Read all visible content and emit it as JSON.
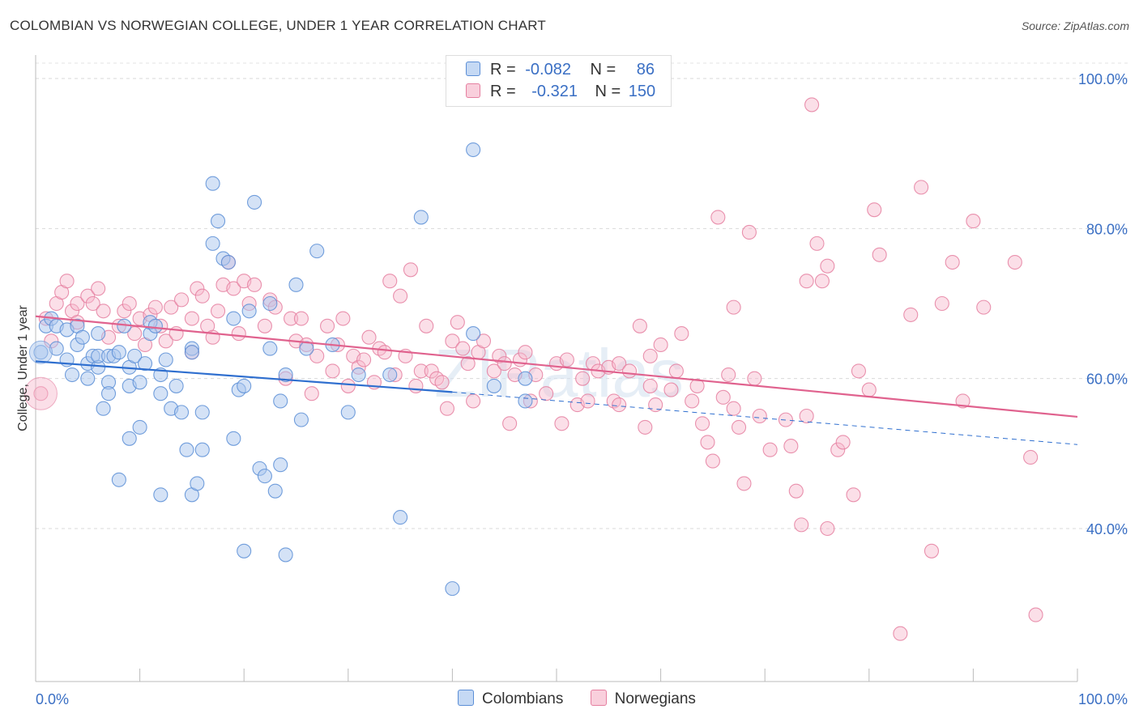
{
  "title": "COLOMBIAN VS NORWEGIAN COLLEGE, UNDER 1 YEAR CORRELATION CHART",
  "source": "Source: ZipAtlas.com",
  "watermark": "ZIPatlas",
  "colors": {
    "blue_fill": "#a9c6ee",
    "blue_stroke": "#5b8ed6",
    "blue_line": "#2f6fcf",
    "pink_fill": "#f6b8cb",
    "pink_stroke": "#e57fa0",
    "pink_line": "#e0628e",
    "tick_text": "#3a6fc4"
  },
  "legend": {
    "rows": [
      {
        "r_label": "R =",
        "r_value": "-0.082",
        "n_label": "N =",
        "n_value": "86"
      },
      {
        "r_label": "R =",
        "r_value": "-0.321",
        "n_label": "N =",
        "n_value": "150"
      }
    ]
  },
  "bottom_legend": [
    "Colombians",
    "Norwegians"
  ],
  "chart_data": {
    "type": "scatter",
    "title": "COLOMBIAN VS NORWEGIAN COLLEGE, UNDER 1 YEAR CORRELATION CHART",
    "ylabel": "College, Under 1 year",
    "xlabel": "",
    "x_tick_labels": [
      "0.0%",
      "100.0%"
    ],
    "y_tick_labels": [
      "100.0%",
      "80.0%",
      "60.0%",
      "40.0%"
    ],
    "y_ticks": [
      100,
      80,
      60,
      40
    ],
    "xlim": [
      0,
      100
    ],
    "ylim": [
      20,
      102
    ],
    "series": [
      {
        "name": "Colombians",
        "r": -0.082,
        "n": 86,
        "trend": {
          "x0": 0,
          "y0": 62.3,
          "x1": 40,
          "y1": 58.2,
          "dash_x1": 100,
          "dash_y1": 51.2
        },
        "points": [
          [
            0.5,
            63.5
          ],
          [
            1,
            67
          ],
          [
            1.5,
            68
          ],
          [
            2,
            64
          ],
          [
            2,
            67
          ],
          [
            3,
            62.5
          ],
          [
            3,
            66.5
          ],
          [
            3.5,
            60.5
          ],
          [
            4,
            64.5
          ],
          [
            4,
            67
          ],
          [
            4.5,
            65.5
          ],
          [
            5,
            62
          ],
          [
            5,
            60
          ],
          [
            5.5,
            63
          ],
          [
            6,
            61.5
          ],
          [
            6,
            63
          ],
          [
            6,
            66
          ],
          [
            6.5,
            56
          ],
          [
            7,
            59.5
          ],
          [
            7,
            58
          ],
          [
            7,
            63
          ],
          [
            7.5,
            63
          ],
          [
            8,
            46.5
          ],
          [
            8,
            63.5
          ],
          [
            8.5,
            67
          ],
          [
            9,
            61.5
          ],
          [
            9,
            59
          ],
          [
            9.5,
            63
          ],
          [
            10,
            53.5
          ],
          [
            10,
            59.5
          ],
          [
            10.5,
            62
          ],
          [
            11,
            66
          ],
          [
            11,
            67.5
          ],
          [
            11.5,
            67
          ],
          [
            12,
            60.5
          ],
          [
            12,
            58
          ],
          [
            12.5,
            62.5
          ],
          [
            13,
            56
          ],
          [
            13.5,
            59
          ],
          [
            14,
            55.5
          ],
          [
            14.5,
            50.5
          ],
          [
            15,
            64
          ],
          [
            15,
            63.5
          ],
          [
            15,
            44.5
          ],
          [
            15.5,
            46
          ],
          [
            16,
            55.5
          ],
          [
            16,
            50.5
          ],
          [
            17,
            86
          ],
          [
            17,
            78
          ],
          [
            17.5,
            81
          ],
          [
            18,
            76
          ],
          [
            18.5,
            75.5
          ],
          [
            19,
            52
          ],
          [
            19,
            68
          ],
          [
            19.5,
            58.5
          ],
          [
            20,
            59
          ],
          [
            20,
            37
          ],
          [
            20.5,
            69
          ],
          [
            21,
            83.5
          ],
          [
            21.5,
            48
          ],
          [
            22,
            47
          ],
          [
            22.5,
            64
          ],
          [
            22.5,
            70
          ],
          [
            23,
            45
          ],
          [
            23.5,
            48.5
          ],
          [
            23.5,
            57
          ],
          [
            24,
            36.5
          ],
          [
            24,
            60.5
          ],
          [
            25,
            72.5
          ],
          [
            25.5,
            54.5
          ],
          [
            26,
            64
          ],
          [
            27,
            77
          ],
          [
            28.5,
            64.5
          ],
          [
            30,
            55.5
          ],
          [
            31,
            60.5
          ],
          [
            34,
            60.5
          ],
          [
            35,
            41.5
          ],
          [
            37,
            81.5
          ],
          [
            40,
            32
          ],
          [
            42,
            90.5
          ],
          [
            42,
            66
          ],
          [
            44,
            59
          ],
          [
            47,
            57
          ],
          [
            47,
            60
          ],
          [
            9,
            52
          ],
          [
            12,
            44.5
          ]
        ]
      },
      {
        "name": "Norwegians",
        "r": -0.321,
        "n": 150,
        "trend": {
          "x0": 0,
          "y0": 68.3,
          "x1": 100,
          "y1": 54.9
        },
        "points": [
          [
            0.5,
            58
          ],
          [
            1,
            68
          ],
          [
            1.5,
            65
          ],
          [
            2,
            70
          ],
          [
            2.5,
            71.5
          ],
          [
            3,
            73
          ],
          [
            3.5,
            69
          ],
          [
            4,
            70
          ],
          [
            4,
            67.5
          ],
          [
            5,
            71
          ],
          [
            5.5,
            70
          ],
          [
            6,
            72
          ],
          [
            6.5,
            69
          ],
          [
            7,
            65.5
          ],
          [
            8,
            67
          ],
          [
            8.5,
            69
          ],
          [
            9,
            70
          ],
          [
            9.5,
            66
          ],
          [
            10,
            68
          ],
          [
            10.5,
            64.5
          ],
          [
            11,
            68.5
          ],
          [
            11.5,
            69.5
          ],
          [
            12,
            67
          ],
          [
            12.5,
            65
          ],
          [
            13,
            69.5
          ],
          [
            13.5,
            66
          ],
          [
            14,
            70.5
          ],
          [
            15,
            68
          ],
          [
            15,
            63.5
          ],
          [
            15.5,
            72
          ],
          [
            16,
            71
          ],
          [
            16.5,
            67
          ],
          [
            17,
            65.5
          ],
          [
            17.5,
            69
          ],
          [
            18,
            72.5
          ],
          [
            18.5,
            75.5
          ],
          [
            19,
            72
          ],
          [
            19.5,
            66
          ],
          [
            20,
            73
          ],
          [
            20.5,
            70
          ],
          [
            21,
            72.5
          ],
          [
            22,
            67
          ],
          [
            22.5,
            70.5
          ],
          [
            23,
            69.5
          ],
          [
            24,
            60
          ],
          [
            24.5,
            68
          ],
          [
            25,
            65
          ],
          [
            25.5,
            68
          ],
          [
            26,
            64.5
          ],
          [
            26.5,
            58
          ],
          [
            27,
            63
          ],
          [
            28,
            67
          ],
          [
            28.5,
            61
          ],
          [
            29,
            64.5
          ],
          [
            29.5,
            68
          ],
          [
            30,
            59
          ],
          [
            30.5,
            63
          ],
          [
            31,
            61.5
          ],
          [
            31.5,
            62.5
          ],
          [
            32,
            65.5
          ],
          [
            32.5,
            59.5
          ],
          [
            33,
            64
          ],
          [
            33.5,
            63.5
          ],
          [
            34,
            73
          ],
          [
            34.5,
            60.5
          ],
          [
            35,
            71
          ],
          [
            35.5,
            63
          ],
          [
            36,
            74.5
          ],
          [
            36.5,
            59
          ],
          [
            37,
            61
          ],
          [
            37.5,
            67
          ],
          [
            38,
            61
          ],
          [
            38.5,
            60
          ],
          [
            39,
            59.5
          ],
          [
            39.5,
            56
          ],
          [
            40,
            65
          ],
          [
            40.5,
            67.5
          ],
          [
            41,
            64
          ],
          [
            41.5,
            62
          ],
          [
            42,
            57
          ],
          [
            42.5,
            63.5
          ],
          [
            43,
            65
          ],
          [
            44,
            61
          ],
          [
            44.5,
            63
          ],
          [
            45,
            62
          ],
          [
            45.5,
            54
          ],
          [
            46,
            60.5
          ],
          [
            46.5,
            62.5
          ],
          [
            47,
            63.5
          ],
          [
            47.5,
            57
          ],
          [
            48,
            60.5
          ],
          [
            49,
            58
          ],
          [
            50,
            62
          ],
          [
            50.5,
            54
          ],
          [
            51,
            62.5
          ],
          [
            52,
            56.5
          ],
          [
            52.5,
            60
          ],
          [
            53,
            57
          ],
          [
            53.5,
            62
          ],
          [
            54,
            61
          ],
          [
            55,
            61.5
          ],
          [
            55.5,
            57
          ],
          [
            56,
            62
          ],
          [
            56,
            56.5
          ],
          [
            57,
            61
          ],
          [
            58,
            67
          ],
          [
            58.5,
            53.5
          ],
          [
            59,
            59
          ],
          [
            59.5,
            56.5
          ],
          [
            60,
            64.5
          ],
          [
            61,
            58.5
          ],
          [
            61.5,
            61
          ],
          [
            62,
            66
          ],
          [
            63,
            57
          ],
          [
            63.5,
            59
          ],
          [
            64,
            54
          ],
          [
            64.5,
            51.5
          ],
          [
            65,
            49
          ],
          [
            65.5,
            81.5
          ],
          [
            66,
            57.5
          ],
          [
            66.5,
            60.5
          ],
          [
            67,
            56
          ],
          [
            67,
            69.5
          ],
          [
            67.5,
            53.5
          ],
          [
            68,
            46
          ],
          [
            68.5,
            79.5
          ],
          [
            69,
            60
          ],
          [
            69.5,
            55
          ],
          [
            70.5,
            50.5
          ],
          [
            72,
            54.5
          ],
          [
            72.5,
            51
          ],
          [
            73,
            45
          ],
          [
            73.5,
            40.5
          ],
          [
            74,
            55
          ],
          [
            74.5,
            96.5
          ],
          [
            75,
            78
          ],
          [
            75.5,
            73
          ],
          [
            76,
            40
          ],
          [
            76,
            75
          ],
          [
            77,
            50.5
          ],
          [
            77.5,
            51.5
          ],
          [
            78.5,
            44.5
          ],
          [
            79,
            61
          ],
          [
            80,
            58.5
          ],
          [
            80.5,
            82.5
          ],
          [
            81,
            76.5
          ],
          [
            83,
            26
          ],
          [
            84,
            68.5
          ],
          [
            85,
            85.5
          ],
          [
            86,
            37
          ],
          [
            87,
            70
          ],
          [
            88,
            75.5
          ],
          [
            89,
            57
          ],
          [
            90,
            81
          ],
          [
            91,
            69.5
          ],
          [
            94,
            75.5
          ],
          [
            95.5,
            49.5
          ],
          [
            96,
            28.5
          ],
          [
            74,
            73
          ],
          [
            59,
            63
          ]
        ]
      }
    ]
  }
}
